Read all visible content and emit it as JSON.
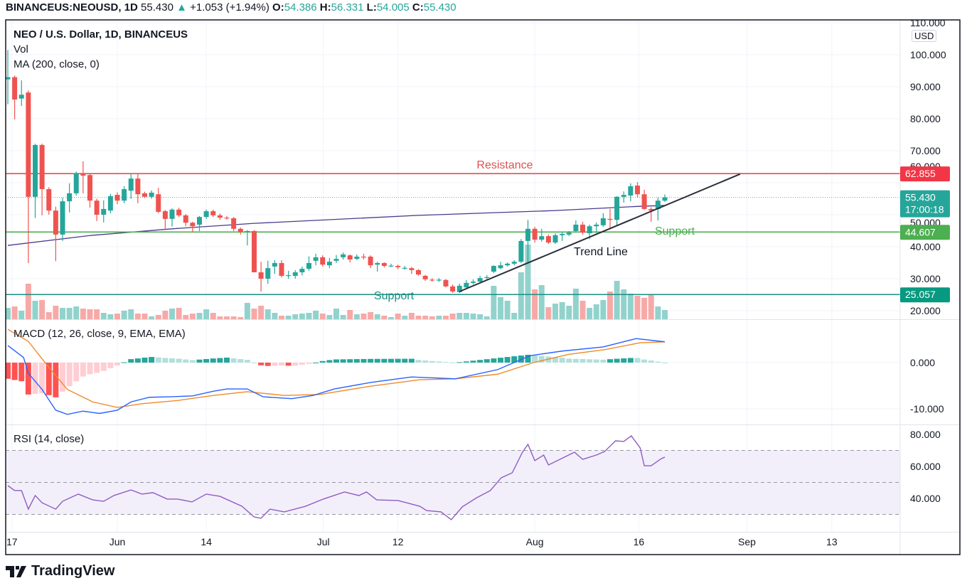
{
  "header": {
    "symbol": "BINANCEUS:NEOUSD, 1D",
    "last": "55.430",
    "change": "+1.053 (+1.94%)",
    "o_label": "O:",
    "o": "54.386",
    "h_label": "H:",
    "h": "56.331",
    "l_label": "L:",
    "l": "54.005",
    "c_label": "C:",
    "c": "55.430"
  },
  "legend": {
    "title": "NEO / U.S. Dollar, 1D, BINANCEUS",
    "vol": "Vol",
    "ma": "MA (200, close, 0)",
    "macd": "MACD (12, 26, close, 9, EMA, EMA)",
    "rsi": "RSI (14, close)"
  },
  "currency": "USD",
  "footer": {
    "brand": "TradingView"
  },
  "colors": {
    "up": "#26a69a",
    "down": "#ef5350",
    "resistance": "#e0514f",
    "support_green": "#4caf50",
    "support_teal": "#1a8f83",
    "ma": "#4a3a8c",
    "macd": "#2962ff",
    "signal": "#f0892b",
    "rsi": "#8e5cc4"
  },
  "chart_data": {
    "type": "candlestick",
    "title": "NEO / U.S. Dollar, 1D, BINANCEUS",
    "x_ticks": [
      {
        "label": "17",
        "i": 0.6
      },
      {
        "label": "Jun",
        "i": 16
      },
      {
        "label": "14",
        "i": 29
      },
      {
        "label": "Jul",
        "i": 46.1
      },
      {
        "label": "12",
        "i": 57
      },
      {
        "label": "Aug",
        "i": 77
      },
      {
        "label": "16",
        "i": 92.2
      },
      {
        "label": "Sep",
        "i": 108
      },
      {
        "label": "13",
        "i": 120.4
      }
    ],
    "price_axis": {
      "range": [
        20,
        110
      ],
      "ticks": [
        "110.000",
        "100.000",
        "90.000",
        "80.000",
        "70.000",
        "60.000",
        "50.000",
        "40.000",
        "30.000",
        "20.000"
      ]
    },
    "candles_ohlc": [
      [
        92.3,
        101.5,
        84.5,
        93.0
      ],
      [
        93,
        93.5,
        79.8,
        86
      ],
      [
        86.3,
        92,
        84,
        87.5
      ],
      [
        88.2,
        88.8,
        34.9,
        55.6
      ],
      [
        55.6,
        72.2,
        49,
        71.8
      ],
      [
        71.8,
        72.2,
        49.8,
        58
      ],
      [
        58,
        58.6,
        50,
        51.3
      ],
      [
        51.3,
        52.5,
        35.5,
        43.8
      ],
      [
        43.8,
        55.3,
        41.8,
        54.2
      ],
      [
        54.2,
        59.8,
        50.7,
        56.7
      ],
      [
        56.7,
        63.5,
        56,
        62.9
      ],
      [
        62.9,
        66.7,
        56.7,
        62.2
      ],
      [
        62.4,
        62.9,
        52.2,
        54.4
      ],
      [
        54.4,
        55,
        48,
        50
      ],
      [
        50,
        54.5,
        47.6,
        51.8
      ],
      [
        51.3,
        56.5,
        50.5,
        55.8
      ],
      [
        56.2,
        57,
        53.3,
        54.4
      ],
      [
        54.4,
        58.9,
        53.6,
        58
      ],
      [
        57.5,
        62.9,
        55,
        61.3
      ],
      [
        61.3,
        62.9,
        53.6,
        56.4
      ],
      [
        56.7,
        57.2,
        55.2,
        55.6
      ],
      [
        55.6,
        57.6,
        55,
        56.9
      ],
      [
        56.4,
        58.4,
        50.5,
        50.9
      ],
      [
        51.1,
        51.5,
        45.2,
        48.7
      ],
      [
        48.7,
        52,
        46.3,
        51.6
      ],
      [
        51.6,
        52.2,
        49.3,
        49.8
      ],
      [
        49.8,
        50.2,
        46.4,
        47.5
      ],
      [
        47.5,
        47.8,
        44.5,
        46.4
      ],
      [
        46.9,
        49.6,
        44.9,
        49.3
      ],
      [
        49.3,
        51.6,
        48.7,
        51.1
      ],
      [
        51.1,
        51.6,
        49.3,
        49.8
      ],
      [
        49.8,
        50.4,
        48.4,
        49.1
      ],
      [
        49.1,
        49.6,
        48.4,
        48.9
      ],
      [
        48.9,
        49.3,
        44.9,
        45.6
      ],
      [
        45.6,
        46,
        43.8,
        44.7
      ],
      [
        44.7,
        45.2,
        40.4,
        44.9
      ],
      [
        44.9,
        45.2,
        32,
        32
      ],
      [
        32,
        35.3,
        26,
        30
      ],
      [
        30,
        35.6,
        28.4,
        33.3
      ],
      [
        33.8,
        35.8,
        31.5,
        34.9
      ],
      [
        34.9,
        35.8,
        30.4,
        30.9
      ],
      [
        31.1,
        32.5,
        30,
        31.1
      ],
      [
        30.9,
        32.7,
        30,
        32
      ],
      [
        32,
        33.8,
        31,
        33.1
      ],
      [
        33.1,
        37,
        32.5,
        34.9
      ],
      [
        35.6,
        37.8,
        34.2,
        36.7
      ],
      [
        36.7,
        37.3,
        33.8,
        34.4
      ],
      [
        34.2,
        36.5,
        33.3,
        35.3
      ],
      [
        35.6,
        37.4,
        34.9,
        36.2
      ],
      [
        36.7,
        38.2,
        36,
        37.6
      ],
      [
        37.3,
        37.6,
        35.1,
        36
      ],
      [
        36.2,
        37.6,
        35.8,
        36.9
      ],
      [
        36.9,
        37.8,
        36,
        36.8
      ],
      [
        36.9,
        37.3,
        33.3,
        34.2
      ],
      [
        34.4,
        35.3,
        32.2,
        34.9
      ],
      [
        34.9,
        35.1,
        33.5,
        34
      ],
      [
        34,
        34.7,
        33.6,
        34.1
      ],
      [
        34,
        34.4,
        33,
        33.6
      ],
      [
        33.4,
        34,
        32.8,
        33.4
      ],
      [
        33.3,
        33.7,
        31.5,
        32.7
      ],
      [
        32.7,
        33,
        30.9,
        31.3
      ],
      [
        30.9,
        31.2,
        29.3,
        29.8
      ],
      [
        29.7,
        30.2,
        29.1,
        29.6
      ],
      [
        29.6,
        30.2,
        29,
        29.7
      ],
      [
        29.6,
        29.9,
        27.3,
        27.6
      ],
      [
        27.6,
        28.2,
        25.6,
        26
      ],
      [
        25.8,
        28.5,
        25.5,
        27.8
      ],
      [
        27.3,
        29.6,
        26.9,
        28.7
      ],
      [
        28.7,
        29.8,
        28.2,
        29.1
      ],
      [
        29.1,
        30.9,
        28.7,
        30.2
      ],
      [
        30.4,
        31.1,
        29.8,
        30.5
      ],
      [
        32.2,
        34.2,
        31.8,
        34
      ],
      [
        33.3,
        35.3,
        32.9,
        34.2
      ],
      [
        34.2,
        35.1,
        33.8,
        34.7
      ],
      [
        34.7,
        35.8,
        34.2,
        35.3
      ],
      [
        35.3,
        42.4,
        34.9,
        41.8
      ],
      [
        41.8,
        48.4,
        34.9,
        45.6
      ],
      [
        45.6,
        46.2,
        41.3,
        42.2
      ],
      [
        42.2,
        45.6,
        41.6,
        43.3
      ],
      [
        43.3,
        43.8,
        40.9,
        41.3
      ],
      [
        41.3,
        44.2,
        40.9,
        43.6
      ],
      [
        43.6,
        44.7,
        41.8,
        44
      ],
      [
        43.8,
        44.9,
        43.3,
        44.4
      ],
      [
        44.9,
        48.2,
        44.4,
        46.9
      ],
      [
        46.9,
        47.8,
        43.8,
        44.4
      ],
      [
        44.2,
        46.9,
        42.4,
        46.4
      ],
      [
        46.4,
        47.6,
        44.2,
        46.9
      ],
      [
        46.7,
        50.5,
        46.2,
        48.9
      ],
      [
        48.7,
        51.8,
        45.6,
        48.4
      ],
      [
        48.4,
        55.8,
        46.7,
        55.6
      ],
      [
        55.6,
        57.3,
        53.8,
        56.2
      ],
      [
        56,
        59.8,
        54.2,
        58.9
      ],
      [
        59.1,
        60.2,
        55.4,
        56.4
      ],
      [
        56.4,
        57.8,
        51.5,
        51.8
      ],
      [
        51.8,
        52.3,
        47.8,
        51.3
      ],
      [
        51.8,
        55.3,
        48.2,
        54.4
      ],
      [
        54.386,
        56.331,
        54.005,
        55.43
      ]
    ],
    "volume_relative": [
      16,
      18,
      12,
      50,
      26,
      27,
      10,
      19,
      16,
      16,
      18,
      15,
      14,
      14,
      9,
      7,
      8,
      12,
      14,
      8,
      8,
      4,
      6,
      12,
      15,
      16,
      6,
      8,
      9,
      14,
      9,
      4,
      4,
      4,
      3,
      23,
      15,
      19,
      14,
      9,
      5,
      5,
      7,
      8,
      9,
      12,
      8,
      6,
      15,
      6,
      13,
      7,
      8,
      10,
      7,
      5,
      3,
      8,
      5,
      9,
      5,
      5,
      4,
      5,
      5,
      8,
      9,
      9,
      8,
      7,
      4,
      47,
      31,
      26,
      9,
      66,
      105,
      42,
      48,
      17,
      22,
      24,
      19,
      43,
      26,
      16,
      21,
      27,
      39,
      54,
      42,
      36,
      33,
      30,
      35,
      18,
      13
    ],
    "ma200_points": [
      [
        0,
        40.4
      ],
      [
        12,
        43.5
      ],
      [
        24,
        45.6
      ],
      [
        36,
        47.3
      ],
      [
        60,
        49.8
      ],
      [
        80,
        51.3
      ],
      [
        92,
        52.6
      ]
    ],
    "levels": [
      {
        "name": "Resistance",
        "value": 62.855,
        "tag": "62.855",
        "label": "Resistance"
      },
      {
        "name": "Support",
        "value": 44.607,
        "tag": "44.607",
        "label": "Support"
      },
      {
        "name": "Support",
        "value": 25.057,
        "tag": "25.057",
        "label": "Support"
      }
    ],
    "trend_line": {
      "label": "Trend Line",
      "from": [
        66,
        26.0
      ],
      "to": [
        107,
        62.7
      ]
    },
    "last_price": {
      "value": 55.43,
      "tag": "55.430",
      "countdown": "17:00:18"
    },
    "macd": {
      "range": [
        -14,
        8
      ],
      "ticks": [
        "0.000",
        "-10.000"
      ],
      "macd_points": [
        [
          0,
          3.7
        ],
        [
          2.3,
          1.1
        ],
        [
          3,
          -2.3
        ],
        [
          5,
          -5.8
        ],
        [
          7,
          -10.3
        ],
        [
          8.7,
          -11.2
        ],
        [
          11,
          -10.5
        ],
        [
          13.4,
          -11
        ],
        [
          16,
          -10.3
        ],
        [
          18,
          -8.5
        ],
        [
          20.7,
          -7.5
        ],
        [
          23.8,
          -7.4
        ],
        [
          27,
          -7.2
        ],
        [
          30,
          -6.2
        ],
        [
          32,
          -5.7
        ],
        [
          35,
          -5.7
        ],
        [
          37.3,
          -7.4
        ],
        [
          41.5,
          -7.8
        ],
        [
          44.6,
          -7.1
        ],
        [
          47.7,
          -5.7
        ],
        [
          53,
          -4.3
        ],
        [
          59,
          -3.1
        ],
        [
          65.4,
          -3.5
        ],
        [
          71.6,
          -1.5
        ],
        [
          76.3,
          1.5
        ],
        [
          81,
          2.5
        ],
        [
          87,
          3.4
        ],
        [
          91.8,
          5.2
        ],
        [
          96,
          4.5
        ]
      ],
      "signal_points": [
        [
          0,
          7.2
        ],
        [
          3,
          4.6
        ],
        [
          5.6,
          -0.3
        ],
        [
          8.7,
          -5.8
        ],
        [
          12.4,
          -8.5
        ],
        [
          16,
          -9.7
        ],
        [
          19.6,
          -8.9
        ],
        [
          24.8,
          -8.2
        ],
        [
          30,
          -7.1
        ],
        [
          35,
          -6.3
        ],
        [
          40.4,
          -7.1
        ],
        [
          45.6,
          -6.9
        ],
        [
          53,
          -5.1
        ],
        [
          60.2,
          -3.7
        ],
        [
          65.4,
          -3.5
        ],
        [
          71.6,
          -2.5
        ],
        [
          76.8,
          0
        ],
        [
          82,
          1.8
        ],
        [
          87.2,
          2.8
        ],
        [
          92.4,
          4.3
        ],
        [
          96,
          4.5
        ]
      ]
    },
    "rsi": {
      "ticks": [
        "80.000",
        "60.000",
        "40.000"
      ],
      "bands": [
        70,
        50,
        30
      ],
      "points": [
        [
          0,
          48
        ],
        [
          1,
          44.9
        ],
        [
          2,
          44.9
        ],
        [
          3,
          33.3
        ],
        [
          4,
          41.8
        ],
        [
          5,
          37.3
        ],
        [
          7,
          33.3
        ],
        [
          8,
          38.2
        ],
        [
          10.3,
          42.7
        ],
        [
          12.4,
          39.1
        ],
        [
          14,
          38.2
        ],
        [
          15.5,
          41.8
        ],
        [
          18,
          45.3
        ],
        [
          19.6,
          42.7
        ],
        [
          21.2,
          43.6
        ],
        [
          23.3,
          39.6
        ],
        [
          24.8,
          39.6
        ],
        [
          26.9,
          37.8
        ],
        [
          29,
          42.7
        ],
        [
          31,
          41.3
        ],
        [
          34.2,
          35.1
        ],
        [
          36,
          28.4
        ],
        [
          37,
          27.6
        ],
        [
          38.3,
          33.3
        ],
        [
          40.4,
          31.6
        ],
        [
          43.5,
          35.1
        ],
        [
          46.1,
          39.6
        ],
        [
          49.2,
          44
        ],
        [
          51.3,
          41.8
        ],
        [
          52.4,
          44
        ],
        [
          53.9,
          39.1
        ],
        [
          57,
          38.7
        ],
        [
          60.2,
          35.1
        ],
        [
          61.2,
          32.4
        ],
        [
          63.3,
          31.6
        ],
        [
          64.8,
          26.7
        ],
        [
          66.4,
          34.7
        ],
        [
          68.5,
          40.4
        ],
        [
          70.5,
          44.9
        ],
        [
          72.1,
          52.9
        ],
        [
          73.7,
          56
        ],
        [
          75.2,
          68.9
        ],
        [
          76,
          73.8
        ],
        [
          77,
          63.6
        ],
        [
          78.3,
          67.1
        ],
        [
          79,
          60.9
        ],
        [
          80.9,
          64.9
        ],
        [
          82.8,
          68.9
        ],
        [
          84,
          64.4
        ],
        [
          86,
          67.1
        ],
        [
          87.2,
          69.3
        ],
        [
          88.8,
          76
        ],
        [
          90,
          75.6
        ],
        [
          91.1,
          79.1
        ],
        [
          92.4,
          71.6
        ],
        [
          93,
          60.4
        ],
        [
          94,
          60.4
        ],
        [
          95.5,
          64.9
        ],
        [
          96,
          65.8
        ]
      ]
    }
  }
}
